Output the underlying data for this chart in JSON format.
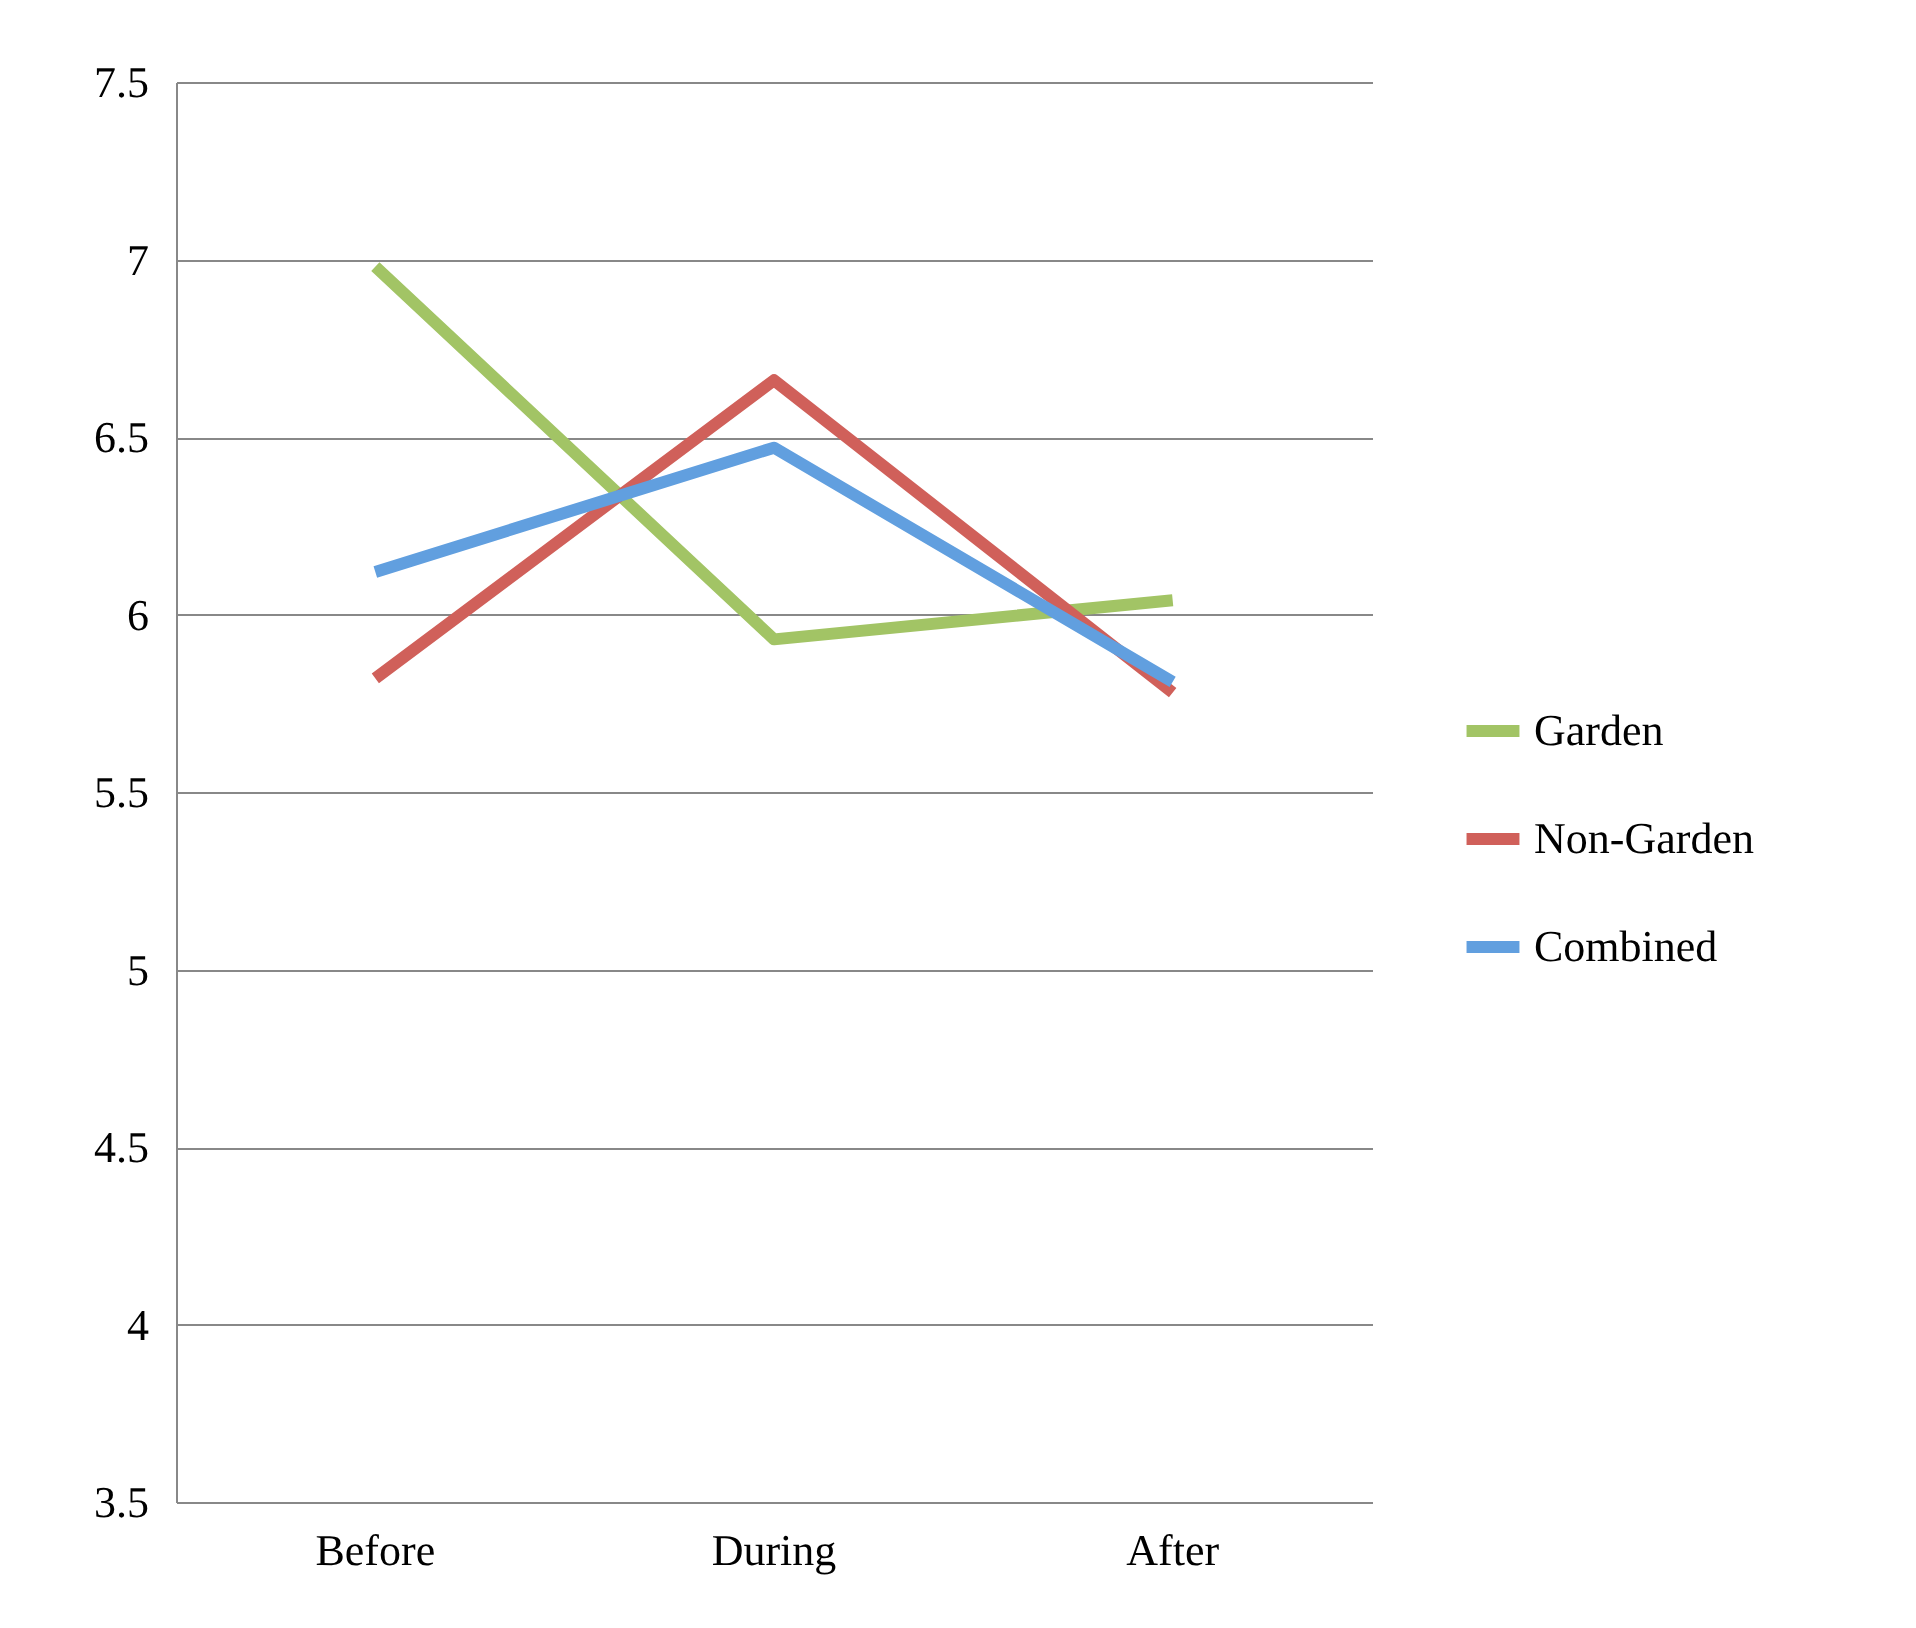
{
  "chart_data": {
    "type": "line",
    "categories": [
      "Before",
      "During",
      "After"
    ],
    "series": [
      {
        "name": "Garden",
        "color": "#a2c465",
        "values": [
          6.98,
          5.93,
          6.04
        ]
      },
      {
        "name": "Non-Garden",
        "color": "#d0605a",
        "values": [
          5.82,
          6.66,
          5.78
        ]
      },
      {
        "name": "Combined",
        "color": "#619fdf",
        "values": [
          6.12,
          6.47,
          5.81
        ]
      }
    ],
    "ylim": [
      3.5,
      7.5
    ],
    "yticks": [
      3.5,
      4,
      4.5,
      5,
      5.5,
      6,
      6.5,
      7,
      7.5
    ],
    "grid": "y",
    "legend": "right",
    "marker": "none",
    "line_style": "solid"
  }
}
